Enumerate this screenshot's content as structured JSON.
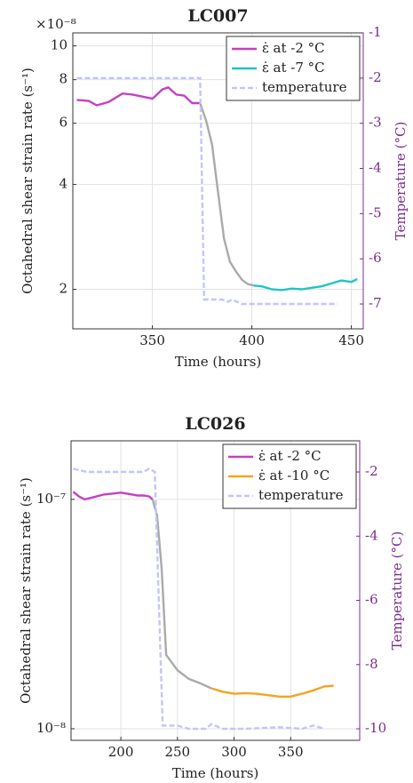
{
  "chart_data": [
    {
      "type": "line",
      "title": "LC007",
      "xlabel": "Time (hours)",
      "ylabel": "Octahedral shear strain rate (s⁻¹)",
      "y2label": "Temperature (°C)",
      "y_multiplier": "×10⁻⁸",
      "log_y": true,
      "grid": true,
      "legend": "upper-right",
      "xlim": [
        310,
        456
      ],
      "xticks": [
        350,
        400,
        450
      ],
      "ylim": [
        1.54,
        10.9
      ],
      "yticks": [
        2,
        4,
        6,
        8,
        10
      ],
      "y2lim": [
        -7.55,
        -1
      ],
      "y2ticks": [
        -1,
        -2,
        -3,
        -4,
        -5,
        -6,
        -7
      ],
      "series": [
        {
          "name": "ε̇ at -2 °C",
          "color": "#c63fc6",
          "x": [
            312,
            318,
            322,
            328,
            335,
            340,
            345,
            350,
            355,
            358,
            362,
            366,
            370,
            374
          ],
          "values": [
            7.0,
            6.95,
            6.75,
            6.9,
            7.3,
            7.25,
            7.15,
            7.05,
            7.5,
            7.6,
            7.25,
            7.2,
            6.85,
            6.85
          ]
        },
        {
          "color": "#aaaaaa",
          "x": [
            374,
            377,
            380,
            383,
            386,
            389,
            392,
            395,
            398,
            401
          ],
          "values": [
            6.85,
            6.1,
            5.2,
            3.8,
            2.8,
            2.4,
            2.25,
            2.13,
            2.07,
            2.05
          ]
        },
        {
          "name": "ε̇ at -7 °C",
          "color": "#22c4c4",
          "x": [
            401,
            405,
            410,
            415,
            420,
            425,
            430,
            435,
            440,
            445,
            450,
            453
          ],
          "values": [
            2.05,
            2.04,
            2.0,
            1.99,
            2.01,
            2.0,
            2.02,
            2.04,
            2.08,
            2.12,
            2.1,
            2.14
          ]
        },
        {
          "name": "temperature",
          "color": "#c4c4ff",
          "dash": true,
          "axis": "y2",
          "x": [
            312,
            374,
            376,
            385,
            388,
            390,
            395,
            400,
            443
          ],
          "values": [
            -2,
            -2,
            -6.9,
            -6.9,
            -6.95,
            -6.9,
            -7,
            -7,
            -7
          ]
        }
      ]
    },
    {
      "type": "line",
      "title": "LC026",
      "xlabel": "Time (hours)",
      "ylabel": "Octahedral shear strain rate (s⁻¹)",
      "y2label": "Temperature (°C)",
      "log_y": true,
      "grid": true,
      "legend": "upper-right",
      "xlim": [
        156,
        411
      ],
      "xticks": [
        200,
        250,
        300,
        350
      ],
      "ylim": [
        8.9e-09,
        1.8e-07
      ],
      "yticks": [
        {
          "value": 1e-08,
          "label": "10⁻⁸"
        },
        {
          "value": 1e-07,
          "label": "10⁻⁷"
        }
      ],
      "y2lim": [
        -10.36,
        -1.03
      ],
      "y2ticks": [
        -2,
        -4,
        -6,
        -8,
        -10
      ],
      "series": [
        {
          "name": "ε̇ at -2 °C",
          "color": "#c63fc6",
          "x": [
            158,
            163,
            168,
            175,
            185,
            193,
            200,
            205,
            210,
            215,
            220,
            225,
            228
          ],
          "values": [
            1.08e-07,
            1.03e-07,
            1e-07,
            1.02e-07,
            1.05e-07,
            1.06e-07,
            1.07e-07,
            1.06e-07,
            1.05e-07,
            1.04e-07,
            1.04e-07,
            1.03e-07,
            1e-07
          ]
        },
        {
          "color": "#aaaaaa",
          "x": [
            228,
            232,
            236,
            240,
            250,
            260,
            270,
            280
          ],
          "values": [
            1e-07,
            8.5e-08,
            5e-08,
            2.1e-08,
            1.8e-08,
            1.65e-08,
            1.58e-08,
            1.5e-08
          ]
        },
        {
          "name": "ε̇ at -10 °C",
          "color": "#f5a31f",
          "x": [
            280,
            290,
            300,
            310,
            320,
            330,
            340,
            350,
            360,
            370,
            380,
            388
          ],
          "values": [
            1.5e-08,
            1.45e-08,
            1.42e-08,
            1.43e-08,
            1.42e-08,
            1.4e-08,
            1.38e-08,
            1.38e-08,
            1.42e-08,
            1.47e-08,
            1.53e-08,
            1.54e-08
          ]
        },
        {
          "name": "temperature",
          "color": "#c4c4ff",
          "dash": true,
          "axis": "y2",
          "x": [
            158,
            170,
            220,
            225,
            230,
            237,
            250,
            260,
            275,
            280,
            290,
            310,
            340,
            360,
            370,
            380
          ],
          "values": [
            -1.9,
            -2,
            -2,
            -1.9,
            -2,
            -9.9,
            -9.9,
            -10,
            -10,
            -9.85,
            -10,
            -10,
            -9.95,
            -10,
            -9.9,
            -10
          ]
        }
      ]
    }
  ]
}
